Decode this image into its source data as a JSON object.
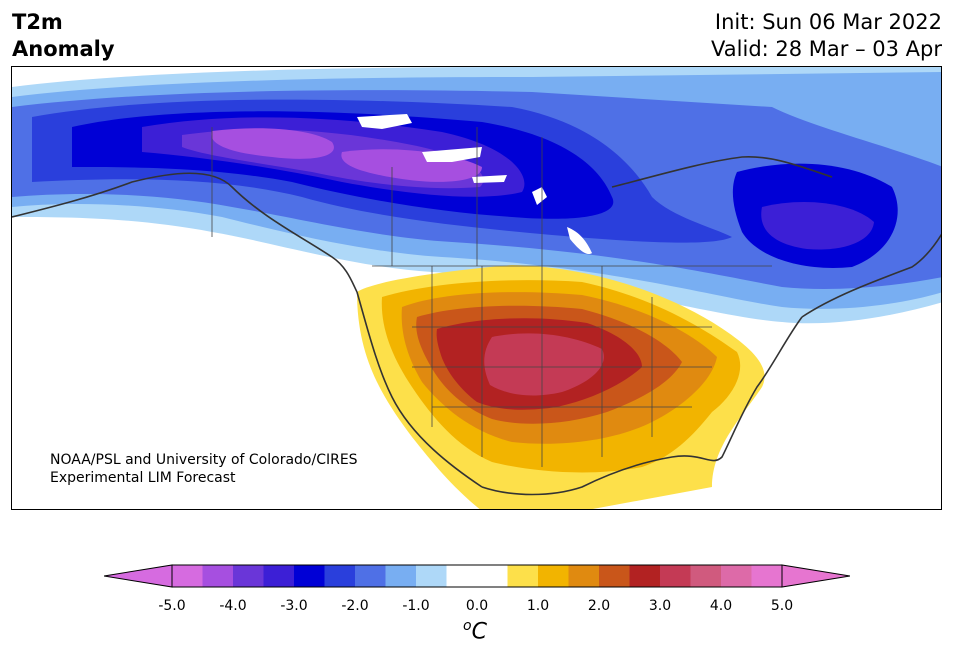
{
  "header": {
    "title_line1": "T2m",
    "title_line2": "Anomaly",
    "init": "Init: Sun 06 Mar 2022",
    "valid": "Valid: 28 Mar – 03 Apr"
  },
  "credit": {
    "line1": "NOAA/PSL and University of Colorado/CIRES",
    "line2": "Experimental LIM Forecast"
  },
  "colorbar": {
    "ticks": [
      "-5.0",
      "-4.0",
      "-3.0",
      "-2.0",
      "-1.0",
      "0.0",
      "1.0",
      "2.0",
      "3.0",
      "4.0",
      "5.0"
    ],
    "unit_super": "o",
    "unit_base": "C",
    "colors": [
      "#d66be0",
      "#a64fe0",
      "#6a36d8",
      "#3c1fd6",
      "#0000d6",
      "#2a3fdc",
      "#4f70e6",
      "#78aef2",
      "#aed8f8",
      "#ffffff",
      "#ffffff",
      "#fde04a",
      "#f2b400",
      "#e08a10",
      "#c9561a",
      "#b22222",
      "#c43a55",
      "#d05a7e",
      "#dd6aa8",
      "#e675d0"
    ],
    "under_color": "#d66be0",
    "over_color": "#e675d0"
  },
  "map": {
    "anomaly_colors": {
      "cold_5": "#0000d6",
      "cold_4": "#3c1fd6",
      "cold_3": "#6a36d8",
      "cold_2": "#a64fe0",
      "cold_1": "#2a3fdc",
      "cool_1": "#4f70e6",
      "cool_2": "#78aef2",
      "cool_3": "#aed8f8",
      "warm_1": "#fde04a",
      "warm_2": "#f2b400",
      "warm_3": "#e08a10",
      "warm_4": "#c9561a",
      "warm_5": "#b22222",
      "warm_6": "#c43a55"
    }
  }
}
